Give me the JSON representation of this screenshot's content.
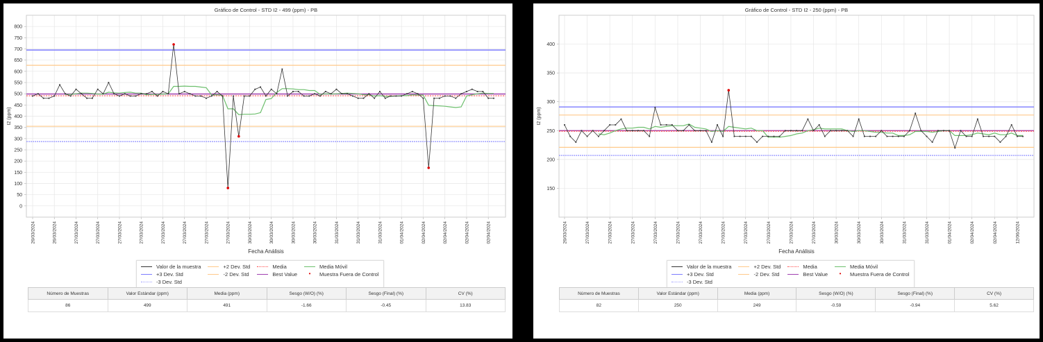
{
  "chart_data": [
    {
      "type": "line",
      "title": "Gráfico de Control - STD I2 - 499 (ppm) - PB",
      "xlabel": "Fecha Análisis",
      "ylabel": "I2 (ppm)",
      "ylim": [
        -50,
        850
      ],
      "y_ticks": [
        "0",
        "50",
        "100",
        "150",
        "200",
        "250",
        "300",
        "350",
        "400",
        "450",
        "500",
        "550",
        "600",
        "650",
        "700",
        "750",
        "800"
      ],
      "x_tick_labels": [
        "26/03/2024",
        "26/03/2024",
        "27/03/2024",
        "27/03/2024",
        "27/03/2024",
        "27/03/2024",
        "27/03/2024",
        "27/03/2024",
        "27/03/2024",
        "27/03/2024",
        "30/03/2024",
        "30/03/2024",
        "30/03/2024",
        "30/03/2024",
        "31/03/2024",
        "31/03/2024",
        "31/03/2024",
        "01/04/2024",
        "02/04/2024",
        "02/04/2024",
        "02/04/2024",
        "02/04/2024"
      ],
      "x_tick_every": 4,
      "values": [
        490,
        500,
        480,
        480,
        490,
        540,
        500,
        490,
        520,
        500,
        480,
        480,
        520,
        500,
        550,
        500,
        490,
        500,
        490,
        490,
        500,
        500,
        510,
        490,
        510,
        500,
        720,
        500,
        510,
        500,
        490,
        490,
        480,
        490,
        510,
        490,
        80,
        490,
        310,
        490,
        490,
        520,
        530,
        490,
        520,
        500,
        610,
        490,
        510,
        510,
        490,
        490,
        500,
        490,
        510,
        500,
        520,
        500,
        500,
        490,
        480,
        480,
        500,
        480,
        510,
        480,
        490,
        490,
        490,
        500,
        510,
        500,
        480,
        170,
        480,
        480,
        490,
        490,
        480,
        500,
        510,
        520,
        510,
        510,
        480,
        480
      ],
      "outlier_indices": [
        26,
        36,
        38,
        73
      ],
      "moving_average_window": 7,
      "limits": {
        "plus3": 695,
        "plus2": 627,
        "media": 491,
        "best_value": 499,
        "minus2": 355,
        "minus3": 287
      },
      "grid": true,
      "legend": [
        "Valor de la muestra",
        "+2 Dev. Std",
        "Media",
        "Media Móvil",
        "+3 Dev. Std",
        "-2 Dev. Std",
        "Best Value",
        "Muestra Fuera de Control",
        "-3 Dev. Std"
      ],
      "legend_placement": "bottom-center"
    },
    {
      "type": "line",
      "title": "Gráfico de Control - STD I2 - 250 (ppm) - PB",
      "xlabel": "Fecha Análisis",
      "ylabel": "I2 (ppm)",
      "ylim": [
        100,
        450
      ],
      "y_ticks": [
        "150",
        "200",
        "250",
        "300",
        "350",
        "400"
      ],
      "x_tick_labels": [
        "26/03/2024",
        "27/03/2024",
        "27/03/2024",
        "27/03/2024",
        "27/03/2024",
        "27/03/2024",
        "27/03/2024",
        "27/03/2024",
        "27/03/2024",
        "27/03/2024",
        "27/03/2024",
        "27/03/2024",
        "30/03/2024",
        "30/03/2024",
        "30/03/2024",
        "31/03/2024",
        "31/03/2024",
        "01/04/2024",
        "02/04/2024",
        "02/04/2024",
        "12/06/2024"
      ],
      "x_tick_every": 4,
      "values": [
        260,
        240,
        230,
        250,
        240,
        250,
        240,
        250,
        260,
        260,
        270,
        250,
        250,
        250,
        250,
        240,
        290,
        260,
        260,
        260,
        250,
        250,
        260,
        250,
        250,
        250,
        230,
        260,
        240,
        320,
        240,
        240,
        240,
        240,
        230,
        240,
        240,
        240,
        240,
        250,
        250,
        250,
        250,
        270,
        250,
        260,
        240,
        250,
        250,
        250,
        250,
        240,
        270,
        240,
        240,
        240,
        250,
        240,
        240,
        240,
        240,
        250,
        280,
        250,
        240,
        230,
        250,
        250,
        250,
        220,
        250,
        240,
        240,
        270,
        240,
        240,
        240,
        230,
        240,
        260,
        240,
        240
      ],
      "outlier_indices": [
        29
      ],
      "moving_average_window": 7,
      "limits": {
        "plus3": 291,
        "plus2": 277,
        "media": 249,
        "best_value": 250,
        "minus2": 221,
        "minus3": 207
      },
      "grid": true,
      "legend": [
        "Valor de la muestra",
        "+2 Dev. Std",
        "Media",
        "Media Móvil",
        "+3 Dev. Std",
        "-2 Dev. Std",
        "Best Value",
        "Muestra Fuera de Control",
        "-3 Dev. Std"
      ],
      "legend_placement": "bottom-center"
    }
  ],
  "summary_tables": [
    {
      "headers": [
        "Número de Muestras",
        "Valor Estándar (ppm)",
        "Media (ppm)",
        "Sesgo (W/O) (%)",
        "Sesgo (Final) (%)",
        "CV (%)"
      ],
      "values": [
        "86",
        "499",
        "491",
        "-1.66",
        "-0.45",
        "13.83"
      ]
    },
    {
      "headers": [
        "Número de Muestras",
        "Valor Estándar (ppm)",
        "Media (ppm)",
        "Sesgo (W/O) (%)",
        "Sesgo (Final) (%)",
        "CV (%)"
      ],
      "values": [
        "82",
        "250",
        "249",
        "-0.59",
        "-0.94",
        "5.62"
      ]
    }
  ],
  "colors": {
    "sample": "#333333",
    "plus3": "#7b7bff",
    "minus3": "#9c9cff",
    "two_sigma": "#ffc98a",
    "media": "#ff4d4d",
    "best_value": "#a040b0",
    "moving_average": "#6cbf6c",
    "outlier": "#e00000",
    "grid": "#e6e6e6"
  }
}
